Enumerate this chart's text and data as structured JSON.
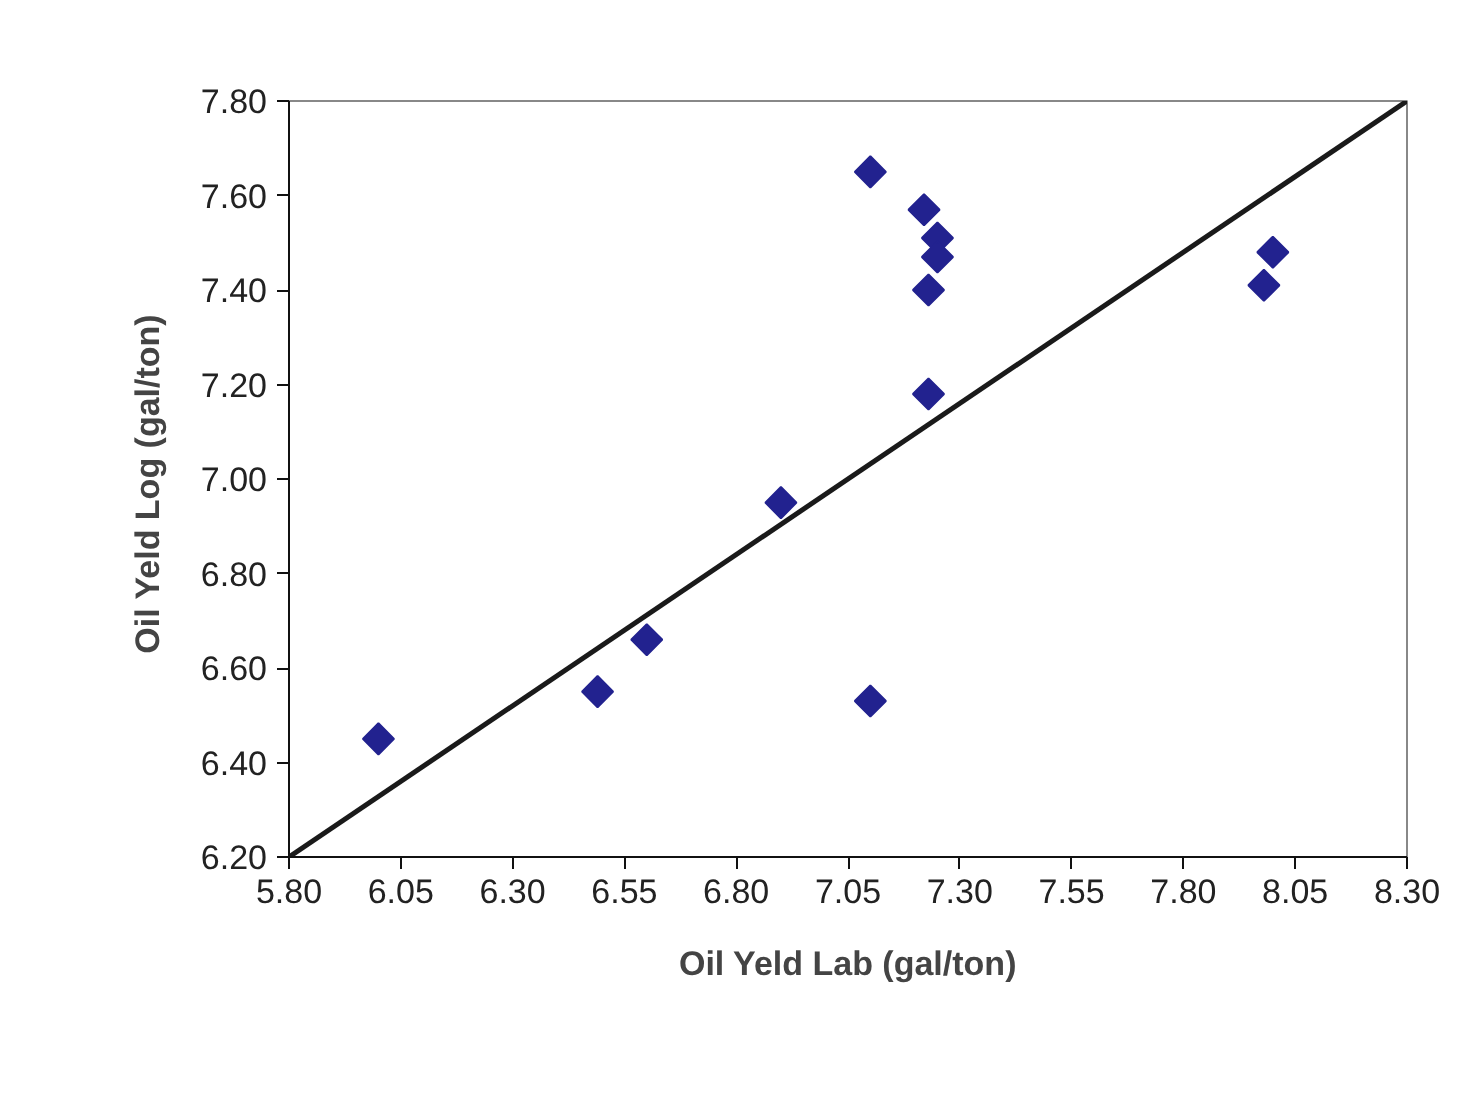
{
  "chart_data": {
    "type": "scatter",
    "xlabel": "Oil Yeld Lab (gal/ton)",
    "ylabel": "Oil Yeld Log  (gal/ton)",
    "grid": false,
    "xlim": [
      5.8,
      8.3
    ],
    "ylim": [
      6.2,
      7.8
    ],
    "xticks": [
      {
        "value": 5.8,
        "label": "5.80"
      },
      {
        "value": 6.05,
        "label": "6.05"
      },
      {
        "value": 6.3,
        "label": "6.30"
      },
      {
        "value": 6.55,
        "label": "6.55"
      },
      {
        "value": 6.8,
        "label": "6.80"
      },
      {
        "value": 7.05,
        "label": "7.05"
      },
      {
        "value": 7.3,
        "label": "7.30"
      },
      {
        "value": 7.55,
        "label": "7.55"
      },
      {
        "value": 7.8,
        "label": "7.80"
      },
      {
        "value": 8.05,
        "label": "8.05"
      },
      {
        "value": 8.3,
        "label": "8.30"
      }
    ],
    "yticks": [
      {
        "value": 6.2,
        "label": "6.20"
      },
      {
        "value": 6.4,
        "label": "6.40"
      },
      {
        "value": 6.6,
        "label": "6.60"
      },
      {
        "value": 6.8,
        "label": "6.80"
      },
      {
        "value": 7.0,
        "label": "7.00"
      },
      {
        "value": 7.2,
        "label": "7.20"
      },
      {
        "value": 7.4,
        "label": "7.40"
      },
      {
        "value": 7.6,
        "label": "7.60"
      },
      {
        "value": 7.8,
        "label": "7.80"
      }
    ],
    "series": [
      {
        "marker": "diamond",
        "color": "#22228f",
        "x": [
          6.0,
          6.49,
          6.6,
          6.9,
          7.1,
          7.22,
          7.25,
          7.25,
          7.23,
          7.23,
          7.1,
          8.0,
          7.98
        ],
        "values": [
          6.45,
          6.55,
          6.66,
          6.95,
          7.65,
          7.57,
          7.51,
          7.47,
          7.4,
          7.18,
          6.53,
          7.48,
          7.41
        ]
      },
      {
        "type": "line",
        "color": "#1a1a1a",
        "x": [
          5.8,
          8.3
        ],
        "values": [
          6.2,
          7.8
        ]
      }
    ]
  }
}
